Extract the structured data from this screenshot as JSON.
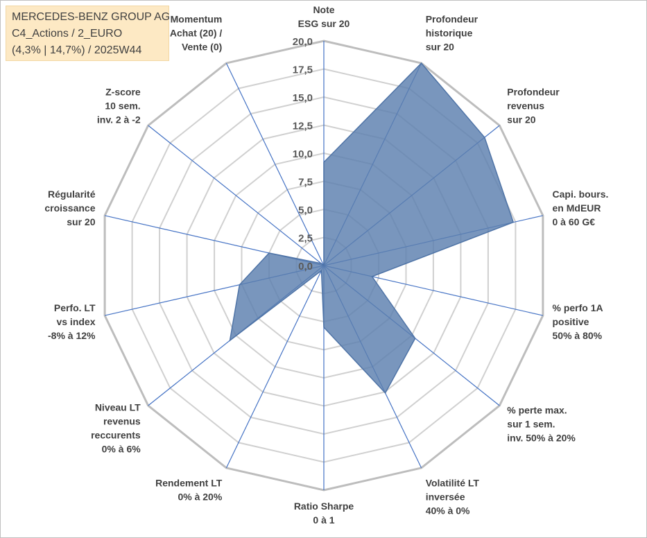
{
  "info": {
    "line1": "MERCEDES-BENZ GROUP AG",
    "line2": "C4_Actions / 2_EURO",
    "line3": "(4,3% | 14,7%) / 2025W44"
  },
  "colors": {
    "fill": "#5b7fae",
    "stroke": "#4e73a6",
    "spoke": "#4472c4",
    "grid": "#d0d0d0",
    "outer": "#bdbdbd"
  },
  "chart_data": {
    "type": "radar",
    "title": "",
    "rmin": 0,
    "rmax": 20,
    "ticks": [
      "0,0",
      "2,5",
      "5,0",
      "7,5",
      "10,0",
      "12,5",
      "15,0",
      "17,5",
      "20,0"
    ],
    "tick_values": [
      0,
      2.5,
      5,
      7.5,
      10,
      12.5,
      15,
      17.5,
      20
    ],
    "axes": [
      {
        "label": [
          "Note",
          "ESG sur 20"
        ],
        "value": 9.2
      },
      {
        "label": [
          "Profondeur",
          "historique",
          "sur 20"
        ],
        "value": 20.0
      },
      {
        "label": [
          "Profondeur",
          "revenus",
          "sur 20"
        ],
        "value": 18.3
      },
      {
        "label": [
          "Capi. bours.",
          "en MdEUR",
          "0 à 60 G€"
        ],
        "value": 17.3
      },
      {
        "label": [
          "% perfo 1A",
          "positive",
          "50% à 80%"
        ],
        "value": 4.4
      },
      {
        "label": [
          "% perte max.",
          "sur 1 sem.",
          "inv. 50% à 20%"
        ],
        "value": 10.4
      },
      {
        "label": [
          "Volatilité LT",
          "inversée",
          "40% à 0%"
        ],
        "value": 12.6
      },
      {
        "label": [
          "Ratio Sharpe",
          "0 à 1"
        ],
        "value": 5.5
      },
      {
        "label": [
          "Rendement LT",
          "0% à 20%"
        ],
        "value": 0.5
      },
      {
        "label": [
          "Niveau LT",
          "revenus",
          "reccurents",
          "0% à 6%"
        ],
        "value": 10.7
      },
      {
        "label": [
          "Perfo. LT",
          "vs index",
          "-8% à 12%"
        ],
        "value": 7.7
      },
      {
        "label": [
          "Régularité",
          "croissance",
          "sur 20"
        ],
        "value": 5.0
      },
      {
        "label": [
          "Z-score",
          "10 sem.",
          "inv. 2 à -2"
        ],
        "value": 0.3
      },
      {
        "label": [
          "Momentum",
          "Achat (20) /",
          "Vente (0)"
        ],
        "value": 0.0
      }
    ]
  }
}
